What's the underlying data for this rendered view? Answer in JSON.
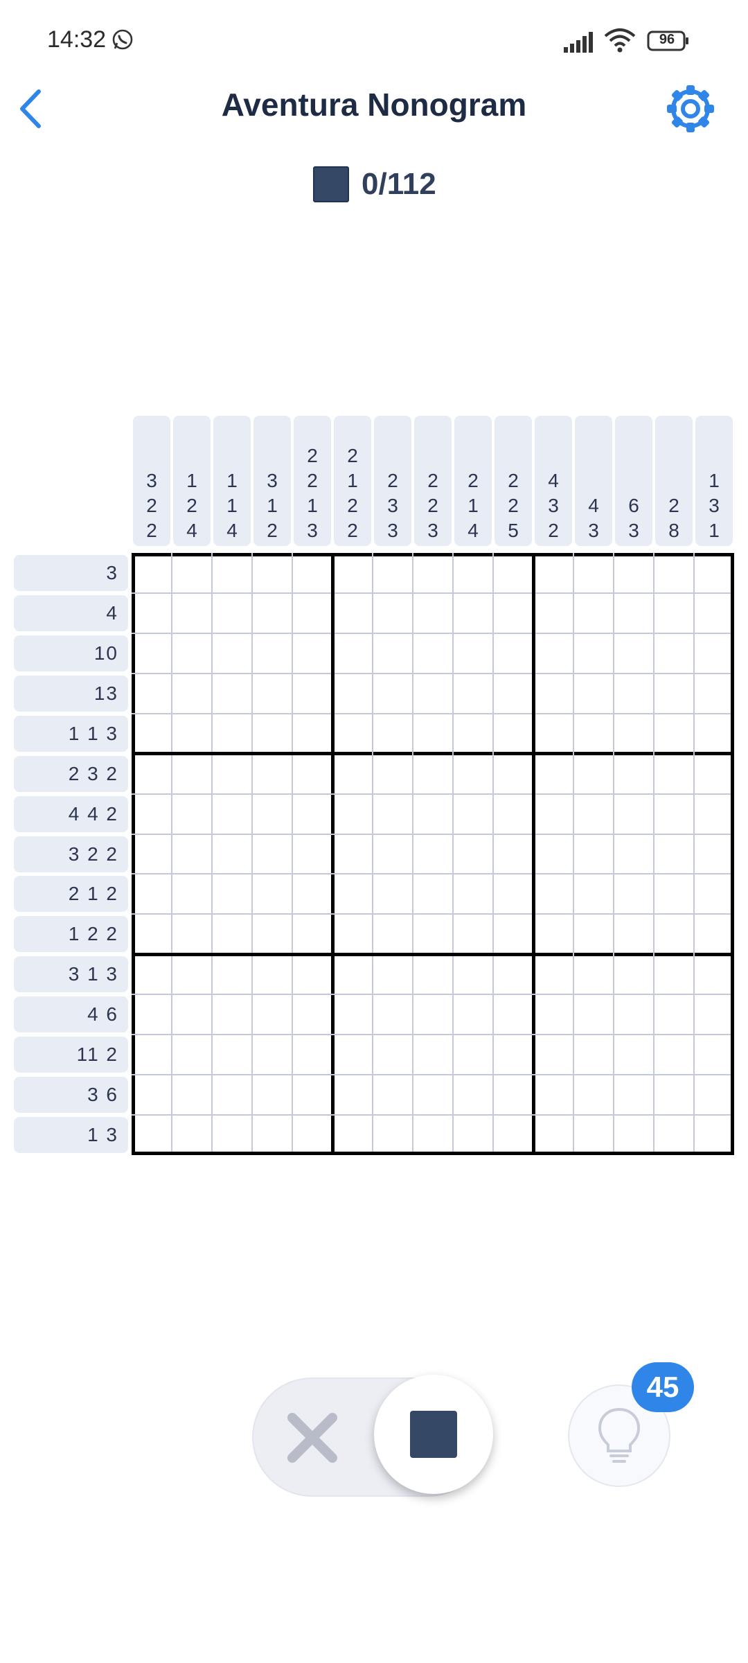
{
  "status_bar": {
    "time": "14:32",
    "battery": "96",
    "icons": [
      "whatsapp-icon",
      "signal-icon",
      "wifi-icon",
      "battery-icon"
    ]
  },
  "header": {
    "title": "Aventura Nonogram",
    "back_icon": "chevron-left-icon",
    "settings_icon": "gear-icon",
    "accent_color": "#2f86e8"
  },
  "progress": {
    "filled": 0,
    "total": 112,
    "text": "0/112"
  },
  "puzzle": {
    "size": 15,
    "column_clues": [
      [
        "3",
        "2",
        "2"
      ],
      [
        "1",
        "2",
        "4"
      ],
      [
        "1",
        "1",
        "4"
      ],
      [
        "3",
        "1",
        "2"
      ],
      [
        "2",
        "2",
        "1",
        "3"
      ],
      [
        "2",
        "1",
        "2",
        "2"
      ],
      [
        "2",
        "3",
        "3"
      ],
      [
        "2",
        "2",
        "3"
      ],
      [
        "2",
        "1",
        "4"
      ],
      [
        "2",
        "2",
        "5"
      ],
      [
        "4",
        "3",
        "2"
      ],
      [
        "4",
        "3"
      ],
      [
        "6",
        "3"
      ],
      [
        "2",
        "8"
      ],
      [
        "1",
        "3",
        "1"
      ]
    ],
    "row_clues": [
      "3",
      "4",
      "10",
      "13",
      "1 1 3",
      "2 3 2",
      "4 4 2",
      "3 2 2",
      "2 1 2",
      "1 2 2",
      "3 1 3",
      "4 6",
      "11 2",
      "3 6",
      "1 3"
    ]
  },
  "controls": {
    "mode_options": [
      "cross",
      "fill"
    ],
    "selected_mode": "fill",
    "hint_icon": "lightbulb-icon",
    "hints_remaining": "45",
    "fill_color": "#344866"
  }
}
